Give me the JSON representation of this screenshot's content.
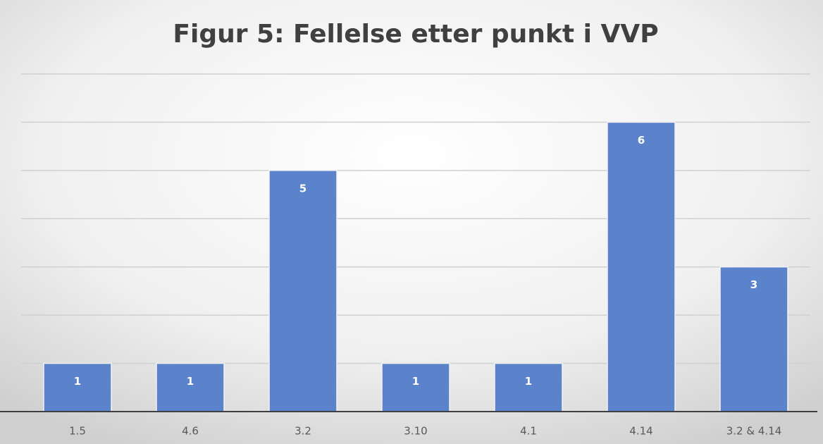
{
  "chart_data": {
    "type": "bar",
    "title": "Figur 5: Fellelse etter punkt i VVP",
    "categories": [
      "1.5",
      "4.6",
      "3.2",
      "3.10",
      "4.1",
      "4.14",
      "3.2 & 4.14"
    ],
    "values": [
      1,
      1,
      5,
      1,
      1,
      6,
      3
    ],
    "color": "#5a83cc",
    "ylim": [
      0,
      7
    ],
    "yticks": [
      0,
      1,
      2,
      3,
      4,
      5,
      6,
      7
    ],
    "grid": true
  }
}
